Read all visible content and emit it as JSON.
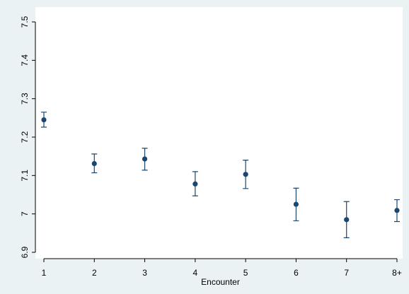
{
  "chart_data": {
    "type": "scatter",
    "xlabel": "Encounter",
    "ylabel": "",
    "categories": [
      "1",
      "2",
      "3",
      "4",
      "5",
      "6",
      "7",
      "8+"
    ],
    "ylim": [
      6.9,
      7.5
    ],
    "yticks": [
      6.9,
      7,
      7.1,
      7.2,
      7.3,
      7.4,
      7.5
    ],
    "ytick_labels": [
      "6.9",
      "7",
      "7.1",
      "7.2",
      "7.3",
      "7.4",
      "7.5"
    ],
    "series": [
      {
        "values": [
          7.245,
          7.131,
          7.143,
          7.078,
          7.103,
          7.025,
          6.985,
          7.009
        ],
        "ci_low": [
          7.226,
          7.107,
          7.114,
          7.047,
          7.066,
          6.982,
          6.938,
          6.98
        ],
        "ci_high": [
          7.265,
          7.156,
          7.171,
          7.11,
          7.14,
          7.067,
          7.032,
          7.037
        ]
      }
    ],
    "grid": false,
    "legend": "none",
    "colors": {
      "marker": "#1a476f",
      "background": "#eaf2f3",
      "plot_background": "#ffffff"
    }
  }
}
